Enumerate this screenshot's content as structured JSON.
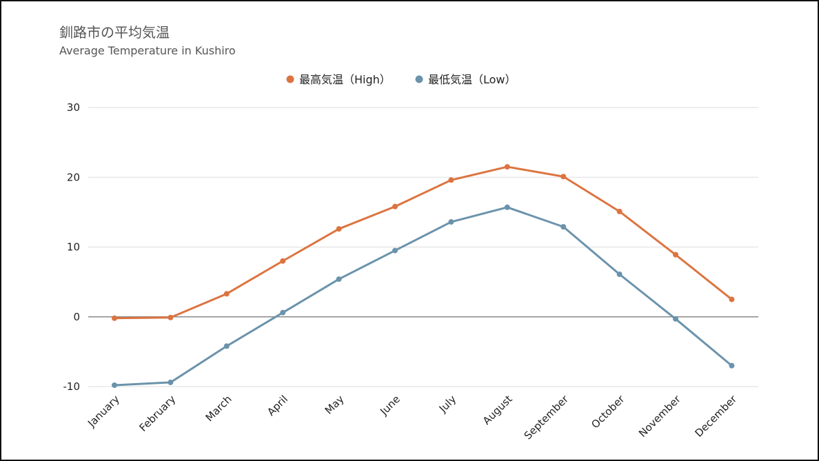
{
  "chart_data": {
    "type": "line",
    "title": "釧路市の平均気温",
    "subtitle": "Average Temperature in Kushiro",
    "xlabel": "",
    "ylabel": "",
    "categories": [
      "January",
      "February",
      "March",
      "April",
      "May",
      "June",
      "July",
      "August",
      "September",
      "October",
      "November",
      "December"
    ],
    "yticks": [
      -10,
      0,
      10,
      20,
      30
    ],
    "ylim": [
      -10,
      30
    ],
    "grid": true,
    "legend_position": "top-center",
    "series": [
      {
        "name": "最高気温（High）",
        "color": "#dc7440",
        "values": [
          -0.2,
          -0.1,
          3.3,
          8.0,
          12.6,
          15.8,
          19.6,
          21.5,
          20.1,
          15.1,
          8.9,
          2.5
        ]
      },
      {
        "name": "最低気温（Low）",
        "color": "#6b93ab",
        "values": [
          -9.8,
          -9.4,
          -4.2,
          0.6,
          5.4,
          9.5,
          13.6,
          15.7,
          12.9,
          6.1,
          -0.3,
          -7.0
        ]
      }
    ]
  }
}
